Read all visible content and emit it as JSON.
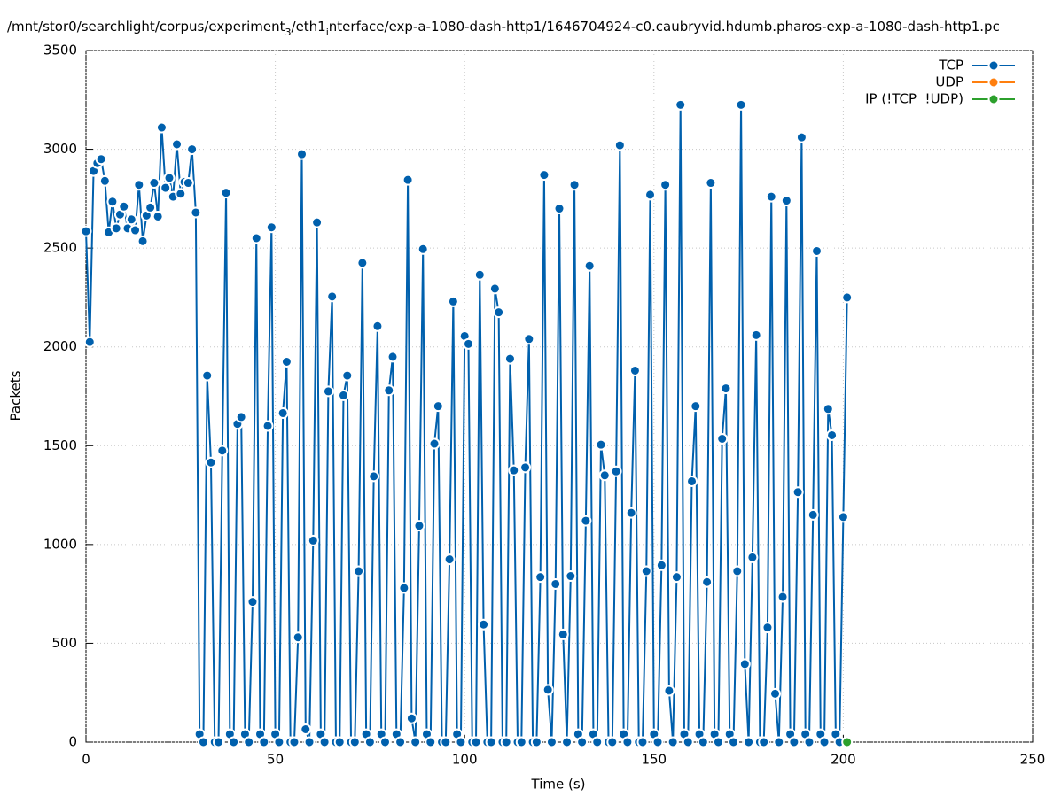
{
  "chart_data": {
    "type": "line",
    "title": [
      "/mnt/stor0/searchlight/corpus/experiment",
      "3",
      "/eth1",
      "i",
      "nterface/exp-a-1080-dash-http1/1646704924-c0.caubryvid.hdumb.pharos-exp-a-1080-dash-http1.pc"
    ],
    "xlabel": "Time (s)",
    "ylabel": "Packets",
    "xlim": [
      0,
      250
    ],
    "xticks": [
      0,
      50,
      100,
      150,
      200,
      250
    ],
    "ylim": [
      0,
      3500
    ],
    "yticks": [
      0,
      500,
      1000,
      1500,
      2000,
      2500,
      3000,
      3500
    ],
    "grid": true,
    "legend": "top-right",
    "series": [
      {
        "name": "TCP",
        "color": "#0060ad",
        "x": [
          0,
          1,
          2,
          3,
          4,
          5,
          6,
          7,
          8,
          9,
          10,
          11,
          12,
          13,
          14,
          15,
          16,
          17,
          18,
          19,
          20,
          21,
          22,
          23,
          24,
          25,
          26,
          27,
          28,
          29,
          30,
          31,
          32,
          33,
          34,
          35,
          36,
          37,
          38,
          39,
          40,
          41,
          42,
          43,
          44,
          45,
          46,
          47,
          48,
          49,
          50,
          51,
          52,
          53,
          54,
          55,
          56,
          57,
          58,
          59,
          60,
          61,
          62,
          63,
          64,
          65,
          66,
          67,
          68,
          69,
          70,
          71,
          72,
          73,
          74,
          75,
          76,
          77,
          78,
          79,
          80,
          81,
          82,
          83,
          84,
          85,
          86,
          87,
          88,
          89,
          90,
          91,
          92,
          93,
          94,
          95,
          96,
          97,
          98,
          99,
          100,
          101,
          102,
          103,
          104,
          105,
          106,
          107,
          108,
          109,
          110,
          111,
          112,
          113,
          114,
          115,
          116,
          117,
          118,
          119,
          120,
          121,
          122,
          123,
          124,
          125,
          126,
          127,
          128,
          129,
          130,
          131,
          132,
          133,
          134,
          135,
          136,
          137,
          138,
          139,
          140,
          141,
          142,
          143,
          144,
          145,
          146,
          147,
          148,
          149,
          150,
          151,
          152,
          153,
          154,
          155,
          156,
          157,
          158,
          159,
          160,
          161,
          162,
          163,
          164,
          165,
          166,
          167,
          168,
          169,
          170,
          171,
          172,
          173,
          174,
          175,
          176,
          177,
          178,
          179,
          180,
          181,
          182,
          183,
          184,
          185,
          186,
          187,
          188,
          189,
          190,
          191,
          192,
          193,
          194,
          195,
          196,
          197,
          198,
          199,
          200,
          201
        ],
        "values": [
          2585,
          2025,
          2890,
          2930,
          2950,
          2840,
          2580,
          2735,
          2600,
          2670,
          2710,
          2600,
          2645,
          2590,
          2820,
          2535,
          2665,
          2705,
          2830,
          2660,
          3110,
          2805,
          2855,
          2760,
          3025,
          2775,
          2835,
          2830,
          3000,
          2680,
          40,
          0,
          1855,
          1415,
          0,
          0,
          1475,
          2780,
          40,
          0,
          1610,
          1645,
          40,
          0,
          710,
          2550,
          40,
          0,
          1600,
          2605,
          40,
          0,
          1665,
          1925,
          0,
          0,
          530,
          2975,
          65,
          0,
          1020,
          2630,
          40,
          0,
          1775,
          2255,
          0,
          0,
          1755,
          1855,
          0,
          0,
          865,
          2425,
          40,
          0,
          1345,
          2105,
          40,
          0,
          1780,
          1950,
          40,
          0,
          780,
          2845,
          120,
          0,
          1095,
          2495,
          40,
          0,
          1510,
          1700,
          0,
          0,
          925,
          2230,
          40,
          0,
          2055,
          2015,
          0,
          0,
          2365,
          595,
          0,
          0,
          2295,
          2175,
          0,
          0,
          1940,
          1375,
          0,
          0,
          1390,
          2040,
          0,
          0,
          835,
          2870,
          265,
          0,
          800,
          2700,
          545,
          0,
          840,
          2820,
          40,
          0,
          1120,
          2410,
          40,
          0,
          1505,
          1350,
          0,
          0,
          1370,
          3020,
          40,
          0,
          1160,
          1880,
          0,
          0,
          865,
          2770,
          40,
          0,
          895,
          2820,
          260,
          0,
          835,
          3225,
          40,
          0,
          1320,
          1700,
          40,
          0,
          810,
          2830,
          40,
          0,
          1535,
          1790,
          40,
          0,
          865,
          3225,
          395,
          0,
          935,
          2060,
          0,
          0,
          580,
          2760,
          245,
          0,
          735,
          2740,
          40,
          0,
          1265,
          3060,
          40,
          0,
          1150,
          2485,
          40,
          0,
          1686,
          1553,
          40,
          0,
          1139,
          2250
        ]
      },
      {
        "name": "UDP",
        "color": "#ff7f0e",
        "x": [],
        "values": []
      },
      {
        "name": "IP (!TCP  !UDP)",
        "color": "#2ca02c",
        "x": [
          201
        ],
        "values": [
          0
        ]
      }
    ]
  }
}
